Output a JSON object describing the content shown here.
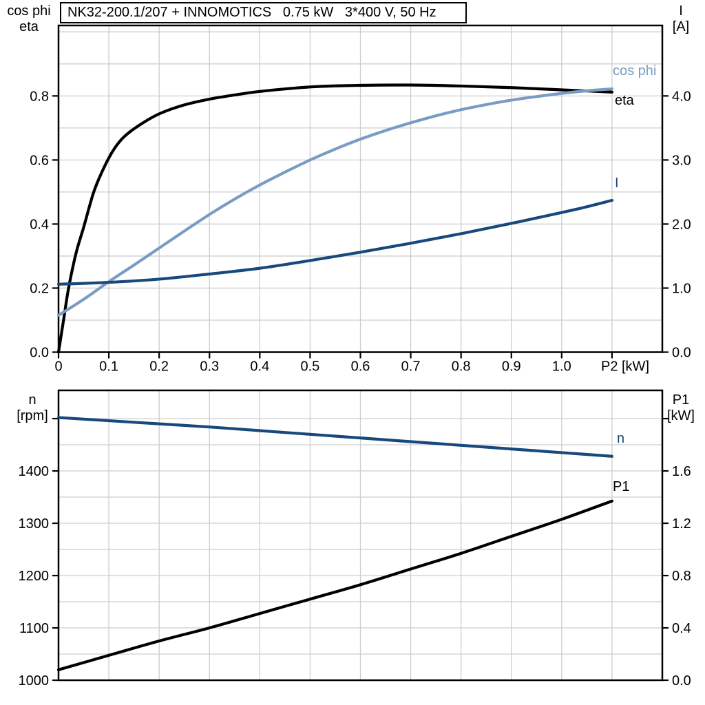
{
  "title": {
    "text": "NK32-200.1/207 + INNOMOTICS   0.75 kW   3*400 V, 50 Hz"
  },
  "colors": {
    "curve_black": "#000000",
    "curve_light_blue": "#7a9cc4",
    "curve_dark_blue": "#17497c",
    "grid": "#cdcdcd",
    "axis": "#000000",
    "background": "#ffffff"
  },
  "chart_data": [
    {
      "type": "line",
      "x_axis": {
        "label": "P2 [kW]",
        "min": 0,
        "max": 1.2,
        "grid": [
          0.1,
          0.2,
          0.3,
          0.4,
          0.5,
          0.6,
          0.7,
          0.8,
          0.9,
          1.0,
          1.1
        ],
        "ticks": [
          {
            "v": 0,
            "label": "0"
          },
          {
            "v": 0.1,
            "label": "0.1"
          },
          {
            "v": 0.2,
            "label": "0.2"
          },
          {
            "v": 0.3,
            "label": "0.3"
          },
          {
            "v": 0.4,
            "label": "0.4"
          },
          {
            "v": 0.5,
            "label": "0.5"
          },
          {
            "v": 0.6,
            "label": "0.6"
          },
          {
            "v": 0.7,
            "label": "0.7"
          },
          {
            "v": 0.8,
            "label": "0.8"
          },
          {
            "v": 0.9,
            "label": "0.9"
          },
          {
            "v": 1.0,
            "label": "1.0"
          },
          {
            "v": 1.1,
            "label": ""
          }
        ]
      },
      "y_left": {
        "header": [
          "cos phi",
          "eta"
        ],
        "min": 0,
        "max": 1.02,
        "grid": [
          0.1,
          0.2,
          0.3,
          0.4,
          0.5,
          0.6,
          0.7,
          0.8,
          0.9,
          1.0
        ],
        "ticks": [
          {
            "v": 0,
            "label": "0.0"
          },
          {
            "v": 0.2,
            "label": "0.2"
          },
          {
            "v": 0.4,
            "label": "0.4"
          },
          {
            "v": 0.6,
            "label": "0.6"
          },
          {
            "v": 0.8,
            "label": "0.8"
          }
        ]
      },
      "y_right": {
        "header": [
          "I",
          "[A]"
        ],
        "min": 0,
        "max": 5.1,
        "grid": [],
        "ticks": [
          {
            "v": 0,
            "label": "0.0"
          },
          {
            "v": 1,
            "label": "1.0"
          },
          {
            "v": 2,
            "label": "2.0"
          },
          {
            "v": 3,
            "label": "3.0"
          },
          {
            "v": 4,
            "label": "4.0"
          }
        ]
      },
      "series": [
        {
          "name": "eta",
          "label": "eta",
          "axis": "left",
          "color": "#000000",
          "x": [
            0,
            0.01,
            0.02,
            0.035,
            0.05,
            0.07,
            0.09,
            0.11,
            0.13,
            0.16,
            0.2,
            0.25,
            0.3,
            0.35,
            0.4,
            0.5,
            0.6,
            0.7,
            0.8,
            0.9,
            1.0,
            1.1
          ],
          "y": [
            0,
            0.1,
            0.2,
            0.31,
            0.39,
            0.5,
            0.575,
            0.633,
            0.672,
            0.708,
            0.744,
            0.772,
            0.79,
            0.803,
            0.814,
            0.828,
            0.833,
            0.834,
            0.831,
            0.826,
            0.819,
            0.812
          ]
        },
        {
          "name": "cos phi",
          "label": "cos phi",
          "axis": "left",
          "color": "#7a9cc4",
          "x": [
            0,
            0.05,
            0.1,
            0.15,
            0.2,
            0.25,
            0.3,
            0.35,
            0.4,
            0.45,
            0.5,
            0.55,
            0.6,
            0.65,
            0.7,
            0.75,
            0.8,
            0.85,
            0.9,
            0.95,
            1.0,
            1.05,
            1.1
          ],
          "y": [
            0.115,
            0.165,
            0.22,
            0.272,
            0.325,
            0.378,
            0.43,
            0.478,
            0.522,
            0.562,
            0.6,
            0.634,
            0.665,
            0.692,
            0.716,
            0.738,
            0.757,
            0.773,
            0.787,
            0.798,
            0.808,
            0.816,
            0.822
          ]
        },
        {
          "name": "I",
          "label": "I",
          "axis": "right",
          "color": "#17497c",
          "x": [
            0,
            0.1,
            0.2,
            0.3,
            0.4,
            0.5,
            0.6,
            0.7,
            0.8,
            0.9,
            1.0,
            1.05,
            1.1
          ],
          "y": [
            1.06,
            1.09,
            1.14,
            1.22,
            1.31,
            1.43,
            1.56,
            1.7,
            1.85,
            2.01,
            2.18,
            2.27,
            2.37
          ]
        }
      ]
    },
    {
      "type": "line",
      "x_axis": {
        "label": "",
        "min": 0,
        "max": 1.2,
        "grid": [
          0.1,
          0.2,
          0.3,
          0.4,
          0.5,
          0.6,
          0.7,
          0.8,
          0.9,
          1.0,
          1.1
        ],
        "ticks": []
      },
      "y_left": {
        "header": [
          "n",
          "[rpm]"
        ],
        "min": 1000,
        "max": 1554,
        "grid": [
          1050,
          1100,
          1150,
          1200,
          1250,
          1300,
          1350,
          1400,
          1450,
          1500
        ],
        "ticks": [
          {
            "v": 1000,
            "label": "1000"
          },
          {
            "v": 1100,
            "label": "1100"
          },
          {
            "v": 1200,
            "label": "1200"
          },
          {
            "v": 1300,
            "label": "1300"
          },
          {
            "v": 1400,
            "label": "1400"
          },
          {
            "v": 1500,
            "label": ""
          }
        ]
      },
      "y_right": {
        "header": [
          "P1",
          "[kW]"
        ],
        "min": 0,
        "max": 2.216,
        "grid": [],
        "ticks": [
          {
            "v": 0,
            "label": "0.0"
          },
          {
            "v": 0.4,
            "label": "0.4"
          },
          {
            "v": 0.8,
            "label": "0.8"
          },
          {
            "v": 1.2,
            "label": "1.2"
          },
          {
            "v": 1.6,
            "label": "1.6"
          },
          {
            "v": 2.0,
            "label": ""
          }
        ]
      },
      "series": [
        {
          "name": "n",
          "label": "n",
          "axis": "left",
          "color": "#17497c",
          "x": [
            0,
            0.1,
            0.2,
            0.3,
            0.4,
            0.5,
            0.6,
            0.7,
            0.8,
            0.9,
            1.0,
            1.1
          ],
          "y": [
            1502,
            1496,
            1490,
            1484,
            1477,
            1470,
            1463,
            1456,
            1449,
            1442,
            1435,
            1428
          ]
        },
        {
          "name": "P1",
          "label": "P1",
          "axis": "right",
          "color": "#000000",
          "x": [
            0,
            0.1,
            0.2,
            0.3,
            0.4,
            0.5,
            0.6,
            0.7,
            0.8,
            0.9,
            1.0,
            1.1
          ],
          "y": [
            0.08,
            0.19,
            0.3,
            0.4,
            0.51,
            0.62,
            0.73,
            0.85,
            0.97,
            1.1,
            1.23,
            1.37
          ]
        }
      ]
    }
  ]
}
